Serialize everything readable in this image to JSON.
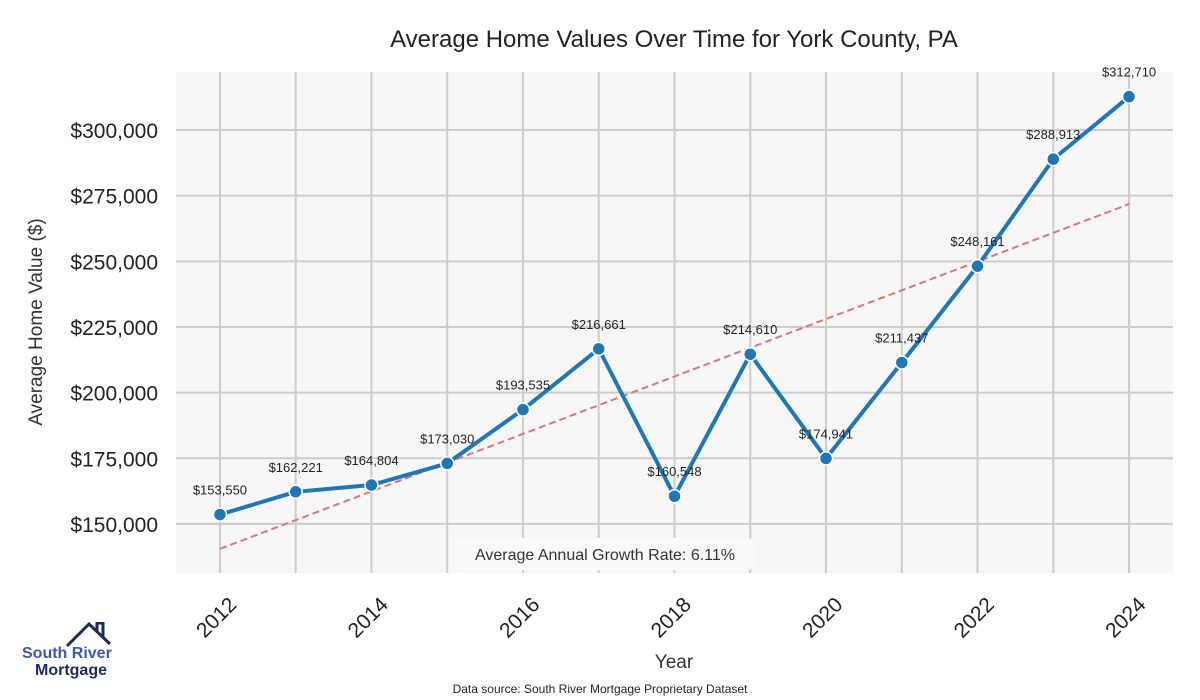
{
  "chart_data": {
    "type": "line",
    "title": "Average Home Values Over Time for York County, PA",
    "xlabel": "Year",
    "ylabel": "Average Home Value ($)",
    "x": [
      2012,
      2013,
      2014,
      2015,
      2016,
      2017,
      2018,
      2019,
      2020,
      2021,
      2022,
      2023,
      2024
    ],
    "values": [
      153550,
      162221,
      164804,
      173030,
      193535,
      216661,
      160548,
      214610,
      174941,
      211437,
      248161,
      288913,
      312710
    ],
    "data_labels": [
      "$153,550",
      "$162,221",
      "$164,804",
      "$173,030",
      "$193,535",
      "$216,661",
      "$160,548",
      "$214,610",
      "$174,941",
      "$211,437",
      "$248,161",
      "$288,913",
      "$312,710"
    ],
    "xticks": [
      2012,
      2014,
      2016,
      2018,
      2020,
      2022,
      2024
    ],
    "xtick_labels": [
      "2012",
      "2014",
      "2016",
      "2018",
      "2020",
      "2022",
      "2024"
    ],
    "yticks": [
      150000,
      175000,
      200000,
      225000,
      250000,
      275000,
      300000
    ],
    "ytick_labels": [
      "$150,000",
      "$175,000",
      "$200,000",
      "$225,000",
      "$250,000",
      "$275,000",
      "$300,000"
    ],
    "xlim": [
      2011.42,
      2024.58
    ],
    "ylim": [
      131300,
      322100
    ],
    "trend": {
      "x": [
        2012,
        2024
      ],
      "y": [
        140500,
        271800
      ]
    },
    "annotation": "Average Annual Growth Rate: 6.11%",
    "grid": true,
    "colors": {
      "line": "#1f77b4",
      "trend": "#d9777a",
      "background": "#f7f7f7",
      "grid": "#cccccc"
    }
  },
  "logo": {
    "line1": "South River",
    "line2": "Mortgage"
  },
  "footer": "Data source: South River Mortgage Proprietary Dataset"
}
